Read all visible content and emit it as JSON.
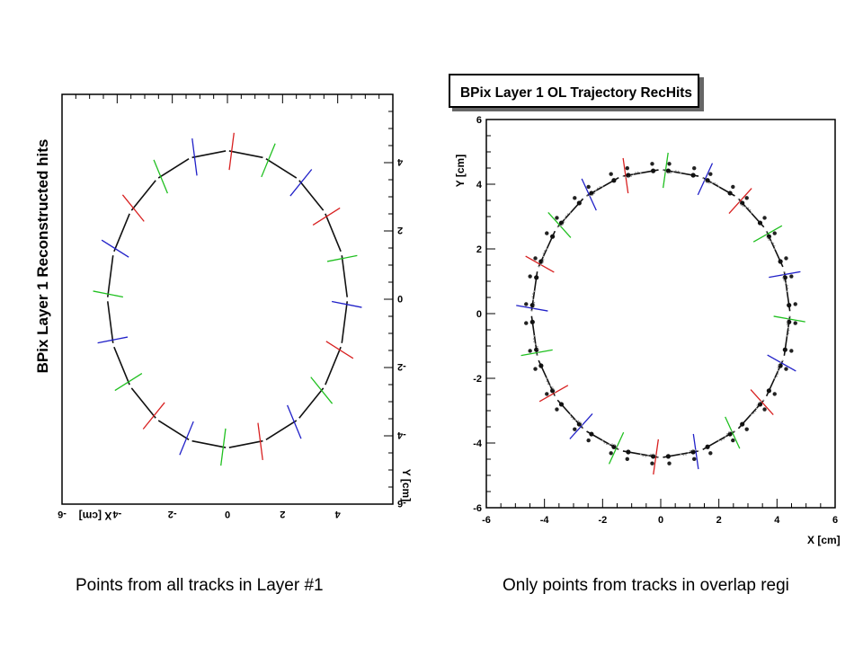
{
  "chart_data": [
    {
      "type": "scatter",
      "title": "BPix Layer 1 Reconstructed hits",
      "xlabel": "X [cm]",
      "ylabel": "Y [cm]",
      "xlim": [
        -6,
        6
      ],
      "ylim": [
        -6,
        6
      ],
      "x_tick_labels": [
        "4",
        "2",
        "0",
        "-2",
        "-4",
        "-6"
      ],
      "y_tick_labels": [
        "4",
        "2",
        "0",
        "-2",
        "-4",
        "-6"
      ],
      "rotated": "180",
      "ring": {
        "center": [
          0,
          0
        ],
        "radius": 4.3,
        "n_modules": 20
      },
      "module_colors": [
        "#2020c8",
        "#20c020",
        "#d82020"
      ],
      "grid": false
    },
    {
      "type": "scatter",
      "title": "BPix Layer 1 OL Trajectory RecHits",
      "xlabel": "X [cm]",
      "ylabel": "Y [cm]",
      "xlim": [
        -6,
        6
      ],
      "ylim": [
        -6,
        6
      ],
      "x_tick_labels": [
        "-6",
        "-4",
        "-2",
        "0",
        "2",
        "4",
        "6"
      ],
      "y_tick_labels": [
        "-6",
        "-4",
        "-2",
        "0",
        "2",
        "4",
        "6"
      ],
      "ring": {
        "center": [
          0,
          0
        ],
        "radius": 4.4,
        "n_modules": 20
      },
      "module_colors": [
        "#2020c8",
        "#20c020",
        "#d82020"
      ],
      "grid": false
    }
  ],
  "captions": {
    "left": "Points from all tracks in Layer #1",
    "right": "Only points from tracks in overlap regi"
  }
}
